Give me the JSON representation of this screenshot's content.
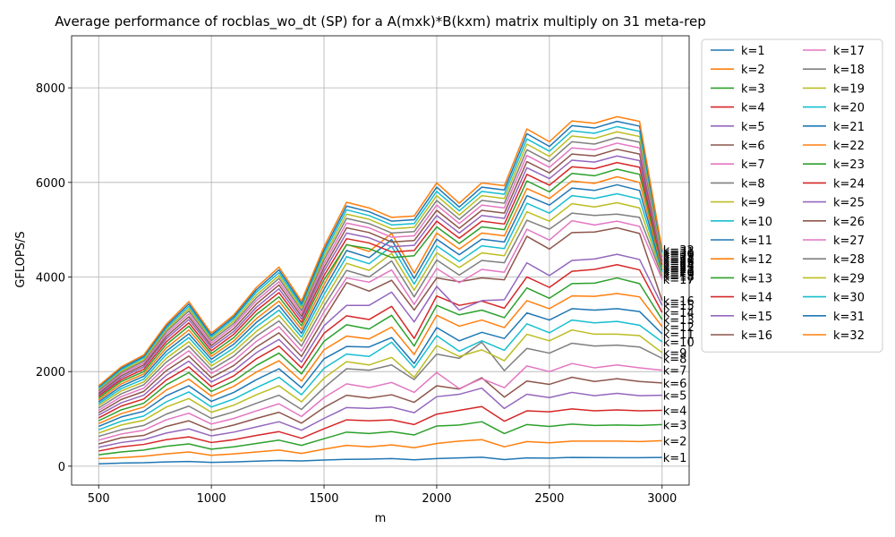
{
  "chart_data": {
    "type": "line",
    "title": "Average performance of rocblas_wo_dt (SP) for a A(mxk)*B(kxm) matrix multiply on 31 meta-rep",
    "xlabel": "m",
    "ylabel": "GFLOPS/S",
    "xlim": [
      380,
      3120
    ],
    "ylim": [
      -400,
      9100
    ],
    "x_ticks": [
      500,
      1000,
      1500,
      2000,
      2500,
      3000
    ],
    "y_ticks": [
      0,
      2000,
      4000,
      6000,
      8000
    ],
    "grid": true,
    "legend_position": "outside-right",
    "x": [
      500,
      600,
      700,
      800,
      900,
      1000,
      1100,
      1200,
      1300,
      1400,
      1500,
      1600,
      1700,
      1800,
      1900,
      2000,
      2100,
      2200,
      2300,
      2400,
      2500,
      2600,
      2700,
      2800,
      2900,
      3000
    ],
    "series": [
      {
        "name": "k=1",
        "color": "#1f77b4",
        "end_label": "k=1",
        "values": [
          50,
          65,
          72,
          90,
          100,
          80,
          90,
          105,
          120,
          110,
          130,
          145,
          148,
          160,
          135,
          160,
          175,
          190,
          140,
          175,
          170,
          185,
          182,
          180,
          180,
          185
        ]
      },
      {
        "name": "k=2",
        "color": "#ff7f0e",
        "end_label": "k=2",
        "values": [
          160,
          180,
          210,
          260,
          300,
          230,
          260,
          300,
          340,
          270,
          360,
          440,
          410,
          450,
          390,
          480,
          530,
          560,
          410,
          520,
          495,
          530,
          530,
          530,
          520,
          540
        ]
      },
      {
        "name": "k=3",
        "color": "#2ca02c",
        "end_label": "k=3",
        "values": [
          240,
          300,
          340,
          420,
          470,
          360,
          410,
          480,
          550,
          440,
          580,
          720,
          690,
          730,
          660,
          850,
          870,
          940,
          690,
          880,
          840,
          890,
          860,
          870,
          860,
          880
        ]
      },
      {
        "name": "k=4",
        "color": "#d62728",
        "end_label": "k=4",
        "values": [
          320,
          410,
          460,
          560,
          620,
          500,
          560,
          650,
          730,
          590,
          790,
          980,
          960,
          980,
          880,
          1100,
          1180,
          1260,
          950,
          1170,
          1150,
          1210,
          1170,
          1190,
          1170,
          1180
        ]
      },
      {
        "name": "k=5",
        "color": "#9467bd",
        "end_label": "k=5",
        "values": [
          400,
          500,
          560,
          700,
          790,
          640,
          720,
          830,
          940,
          760,
          1010,
          1240,
          1220,
          1250,
          1130,
          1470,
          1520,
          1650,
          1220,
          1520,
          1450,
          1560,
          1490,
          1540,
          1490,
          1500
        ]
      },
      {
        "name": "k=6",
        "color": "#8c564b",
        "end_label": "k=6",
        "values": [
          470,
          600,
          650,
          840,
          960,
          760,
          870,
          1010,
          1140,
          910,
          1240,
          1500,
          1440,
          1510,
          1350,
          1700,
          1630,
          1870,
          1460,
          1800,
          1730,
          1880,
          1790,
          1850,
          1790,
          1760
        ]
      },
      {
        "name": "k=7",
        "color": "#e377c2",
        "end_label": "k=7",
        "values": [
          550,
          680,
          760,
          980,
          1120,
          890,
          1010,
          1170,
          1320,
          1050,
          1450,
          1740,
          1660,
          1770,
          1560,
          1980,
          1640,
          1850,
          1660,
          2120,
          2000,
          2170,
          2080,
          2140,
          2080,
          2030
        ]
      },
      {
        "name": "k=8",
        "color": "#7f7f7f",
        "end_label": "k=8",
        "values": [
          630,
          770,
          860,
          1100,
          1270,
          1010,
          1150,
          1330,
          1500,
          1200,
          1660,
          2060,
          2030,
          2140,
          1830,
          2370,
          2280,
          2620,
          2020,
          2490,
          2390,
          2600,
          2540,
          2560,
          2520,
          2280
        ]
      },
      {
        "name": "k=9",
        "color": "#bcbd22",
        "end_label": "k=9",
        "values": [
          700,
          870,
          970,
          1250,
          1430,
          1140,
          1290,
          1510,
          1700,
          1360,
          1860,
          2210,
          2140,
          2300,
          1880,
          2550,
          2320,
          2460,
          2230,
          2790,
          2650,
          2880,
          2790,
          2790,
          2760,
          2400
        ]
      },
      {
        "name": "k=10",
        "color": "#17becf",
        "end_label": "k=10",
        "values": [
          770,
          950,
          1060,
          1360,
          1570,
          1250,
          1420,
          1660,
          1880,
          1510,
          2070,
          2370,
          2320,
          2620,
          2080,
          2760,
          2430,
          2650,
          2450,
          3010,
          2820,
          3090,
          3030,
          3060,
          2980,
          2630
        ]
      },
      {
        "name": "k=11",
        "color": "#1f77b4",
        "end_label": "k=11",
        "values": [
          840,
          1040,
          1160,
          1490,
          1700,
          1370,
          1560,
          1830,
          2060,
          1660,
          2270,
          2530,
          2520,
          2720,
          2170,
          2930,
          2650,
          2830,
          2700,
          3240,
          3090,
          3330,
          3300,
          3330,
          3270,
          2800
        ]
      },
      {
        "name": "k=12",
        "color": "#ff7f0e",
        "end_label": "k=12",
        "values": [
          900,
          1110,
          1250,
          1610,
          1840,
          1480,
          1690,
          1990,
          2230,
          1800,
          2460,
          2750,
          2690,
          2940,
          2360,
          3190,
          2960,
          3090,
          2930,
          3500,
          3330,
          3600,
          3590,
          3650,
          3580,
          2950
        ]
      },
      {
        "name": "k=13",
        "color": "#2ca02c",
        "end_label": "k=13",
        "values": [
          960,
          1190,
          1330,
          1720,
          1980,
          1580,
          1800,
          2130,
          2390,
          1950,
          2640,
          2990,
          2900,
          3190,
          2540,
          3400,
          3200,
          3300,
          3140,
          3770,
          3550,
          3860,
          3870,
          3980,
          3860,
          3100
        ]
      },
      {
        "name": "k=14",
        "color": "#d62728",
        "end_label": "k=14",
        "values": [
          1020,
          1270,
          1420,
          1820,
          2100,
          1680,
          1910,
          2270,
          2540,
          2080,
          2810,
          3180,
          3100,
          3380,
          2700,
          3600,
          3400,
          3490,
          3340,
          4000,
          3780,
          4120,
          4160,
          4260,
          4150,
          3250
        ]
      },
      {
        "name": "k=15",
        "color": "#9467bd",
        "end_label": "k=15",
        "values": [
          1080,
          1340,
          1500,
          1920,
          2220,
          1780,
          2020,
          2400,
          2680,
          2200,
          2970,
          3400,
          3400,
          3680,
          3050,
          3800,
          3300,
          3500,
          3520,
          4300,
          4030,
          4350,
          4380,
          4480,
          4370,
          3400
        ]
      },
      {
        "name": "k=16",
        "color": "#8c564b",
        "end_label": "k=16",
        "values": [
          1130,
          1410,
          1580,
          2020,
          2330,
          1870,
          2130,
          2520,
          2820,
          2320,
          3120,
          3880,
          3700,
          3930,
          3300,
          3980,
          3900,
          3980,
          3940,
          4860,
          4590,
          4940,
          4950,
          5040,
          4920,
          3500
        ]
      },
      {
        "name": "k=17",
        "color": "#e377c2",
        "end_label": "k=17",
        "values": [
          1180,
          1470,
          1650,
          2110,
          2440,
          1960,
          2230,
          2640,
          2950,
          2430,
          3260,
          3980,
          3890,
          4150,
          3420,
          4180,
          3880,
          4160,
          4100,
          5010,
          4780,
          5190,
          5100,
          5180,
          5070,
          3950
        ]
      },
      {
        "name": "k=18",
        "color": "#7f7f7f",
        "end_label": "k=18",
        "values": [
          1230,
          1530,
          1720,
          2200,
          2540,
          2040,
          2330,
          2750,
          3070,
          2540,
          3390,
          4140,
          4000,
          4340,
          3580,
          4360,
          4040,
          4350,
          4300,
          5200,
          5010,
          5350,
          5300,
          5330,
          5260,
          4020
        ]
      },
      {
        "name": "k=19",
        "color": "#bcbd22",
        "end_label": "k=19",
        "values": [
          1280,
          1590,
          1780,
          2280,
          2630,
          2120,
          2420,
          2850,
          3190,
          2640,
          3510,
          4290,
          4140,
          4500,
          3720,
          4510,
          4200,
          4510,
          4450,
          5380,
          5180,
          5550,
          5480,
          5570,
          5460,
          4060
        ]
      },
      {
        "name": "k=20",
        "color": "#17becf",
        "end_label": "k=20",
        "values": [
          1320,
          1640,
          1840,
          2360,
          2720,
          2190,
          2500,
          2950,
          3300,
          2730,
          3630,
          4430,
          4280,
          4650,
          3850,
          4660,
          4330,
          4660,
          4600,
          5560,
          5350,
          5720,
          5660,
          5760,
          5650,
          4100
        ]
      },
      {
        "name": "k=21",
        "color": "#1f77b4",
        "end_label": "k=21",
        "values": [
          1360,
          1690,
          1900,
          2430,
          2800,
          2260,
          2580,
          3040,
          3400,
          2810,
          3740,
          4560,
          4410,
          4790,
          3970,
          4800,
          4470,
          4800,
          4740,
          5720,
          5520,
          5880,
          5830,
          5950,
          5830,
          4140
        ]
      },
      {
        "name": "k=22",
        "color": "#ff7f0e",
        "end_label": "k=22",
        "values": [
          1400,
          1740,
          1950,
          2500,
          2880,
          2320,
          2650,
          3120,
          3490,
          2890,
          3840,
          4690,
          4540,
          4920,
          4080,
          4930,
          4590,
          4930,
          4870,
          5870,
          5660,
          6030,
          5980,
          6120,
          6000,
          4180
        ]
      },
      {
        "name": "k=23",
        "color": "#2ca02c",
        "end_label": "k=23",
        "values": [
          1440,
          1790,
          2000,
          2570,
          2960,
          2380,
          2720,
          3210,
          3580,
          2970,
          3940,
          4680,
          4600,
          4410,
          4450,
          5060,
          4710,
          5060,
          5000,
          6030,
          5800,
          6190,
          6140,
          6280,
          6170,
          4220
        ]
      },
      {
        "name": "k=24",
        "color": "#d62728",
        "end_label": "k=24",
        "values": [
          1480,
          1830,
          2050,
          2630,
          3030,
          2440,
          2790,
          3290,
          3670,
          3040,
          4030,
          4810,
          4720,
          4530,
          4560,
          5180,
          4820,
          5180,
          5120,
          6170,
          5940,
          6330,
          6290,
          6420,
          6320,
          4260
        ]
      },
      {
        "name": "k=25",
        "color": "#9467bd",
        "end_label": "k=25",
        "values": [
          1510,
          1870,
          2100,
          2690,
          3100,
          2500,
          2850,
          3360,
          3750,
          3110,
          4120,
          4930,
          4830,
          4640,
          4670,
          5300,
          4930,
          5300,
          5240,
          6310,
          6080,
          6470,
          6430,
          6560,
          6460,
          4300
        ]
      },
      {
        "name": "k=26",
        "color": "#8c564b",
        "end_label": "k=26",
        "values": [
          1540,
          1910,
          2140,
          2740,
          3160,
          2550,
          2910,
          3430,
          3830,
          3170,
          4200,
          5040,
          4940,
          4740,
          4770,
          5410,
          5030,
          5410,
          5350,
          6440,
          6200,
          6600,
          6560,
          6700,
          6600,
          4340
        ]
      },
      {
        "name": "k=27",
        "color": "#e377c2",
        "end_label": "k=27",
        "values": [
          1570,
          1950,
          2180,
          2790,
          3220,
          2600,
          2970,
          3500,
          3900,
          3230,
          4280,
          5140,
          5040,
          4840,
          4870,
          5520,
          5130,
          5520,
          5460,
          6570,
          6320,
          6730,
          6690,
          6830,
          6730,
          4380
        ]
      },
      {
        "name": "k=28",
        "color": "#7f7f7f",
        "end_label": "k=28",
        "values": [
          1600,
          1980,
          2220,
          2840,
          3280,
          2650,
          3020,
          3560,
          3970,
          3290,
          4360,
          5240,
          5130,
          4930,
          4960,
          5620,
          5220,
          5620,
          5560,
          6690,
          6440,
          6860,
          6810,
          6950,
          6850,
          4420
        ]
      },
      {
        "name": "k=29",
        "color": "#bcbd22",
        "end_label": "k=29",
        "values": [
          1630,
          2010,
          2250,
          2880,
          3330,
          2690,
          3070,
          3620,
          4030,
          3340,
          4430,
          5330,
          5220,
          5020,
          5050,
          5720,
          5310,
          5720,
          5660,
          6810,
          6550,
          6980,
          6930,
          7070,
          6970,
          4460
        ]
      },
      {
        "name": "k=30",
        "color": "#17becf",
        "end_label": "k=30",
        "values": [
          1650,
          2040,
          2290,
          2920,
          3380,
          2730,
          3120,
          3680,
          4090,
          3390,
          4500,
          5420,
          5300,
          5100,
          5130,
          5810,
          5400,
          5810,
          5750,
          6920,
          6660,
          7090,
          7040,
          7180,
          7080,
          4500
        ]
      },
      {
        "name": "k=31",
        "color": "#1f77b4",
        "end_label": "k=31",
        "values": [
          1680,
          2070,
          2320,
          2960,
          3430,
          2770,
          3160,
          3730,
          4150,
          3440,
          4570,
          5500,
          5380,
          5180,
          5210,
          5900,
          5480,
          5900,
          5840,
          7030,
          6760,
          7200,
          7150,
          7290,
          7190,
          4540
        ]
      },
      {
        "name": "k=32",
        "color": "#ff7f0e",
        "end_label": "k=32",
        "values": [
          1700,
          2100,
          2350,
          3000,
          3480,
          2810,
          3200,
          3780,
          4210,
          3490,
          4640,
          5580,
          5460,
          5260,
          5290,
          5990,
          5560,
          5990,
          5930,
          7130,
          6860,
          7300,
          7250,
          7390,
          7290,
          4580
        ]
      }
    ]
  }
}
